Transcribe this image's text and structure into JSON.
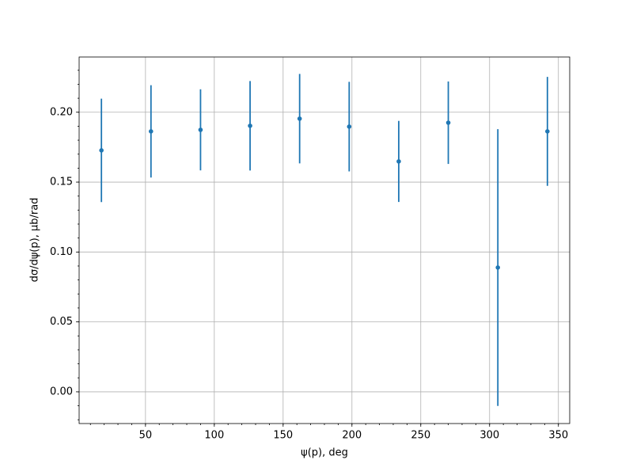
{
  "chart_data": {
    "type": "errorbar",
    "xlabel": "ψ(p), deg",
    "ylabel": "dσ/dψ(p), μb/rad",
    "color": "#1f77b4",
    "x": [
      18,
      54,
      90,
      126,
      162,
      198,
      234,
      270,
      306,
      342
    ],
    "values": [
      0.1727,
      0.1863,
      0.1874,
      0.1903,
      0.1954,
      0.1897,
      0.1648,
      0.1925,
      0.0889,
      0.1863
    ],
    "errors": [
      0.037,
      0.033,
      0.029,
      0.032,
      0.032,
      0.032,
      0.029,
      0.0295,
      0.099,
      0.039
    ],
    "xlim": [
      1.8,
      358.2
    ],
    "ylim": [
      -0.0227,
      0.2395
    ],
    "xticks": [
      50,
      100,
      150,
      200,
      250,
      300,
      350
    ],
    "yticks": [
      {
        "value": 0,
        "label": "0.00"
      },
      0.05,
      {
        "value": 0.1,
        "label": "0.10"
      },
      0.15,
      {
        "value": 0.2,
        "label": "0.20"
      }
    ],
    "grid": true,
    "minor_ticks": true
  }
}
